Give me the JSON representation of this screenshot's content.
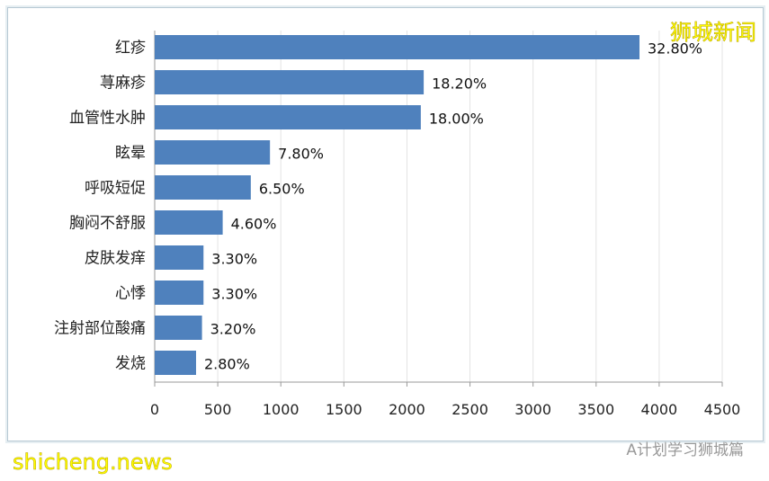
{
  "chart_data": {
    "type": "bar",
    "orientation": "horizontal",
    "categories": [
      "红疹",
      "荨麻疹",
      "血管性水肿",
      "眩晕",
      "呼吸短促",
      "胸闷不舒服",
      "皮肤发痒",
      "心悸",
      "注射部位酸痛",
      "发烧"
    ],
    "values": [
      3844,
      2133,
      2110,
      914,
      762,
      539,
      387,
      387,
      375,
      328
    ],
    "data_labels": [
      "32.80%",
      "18.20%",
      "18.00%",
      "7.80%",
      "6.50%",
      "4.60%",
      "3.30%",
      "3.30%",
      "3.20%",
      "2.80%"
    ],
    "xlim": [
      0,
      4500
    ],
    "xticks": [
      0,
      500,
      1000,
      1500,
      2000,
      2500,
      3000,
      3500,
      4000,
      4500
    ],
    "grid": "vertical",
    "bar_color": "#4f81bd"
  },
  "watermarks": {
    "top": "狮城新闻",
    "bottom_left": "shicheng.news",
    "bottom_right": "A计划学习狮城篇"
  }
}
